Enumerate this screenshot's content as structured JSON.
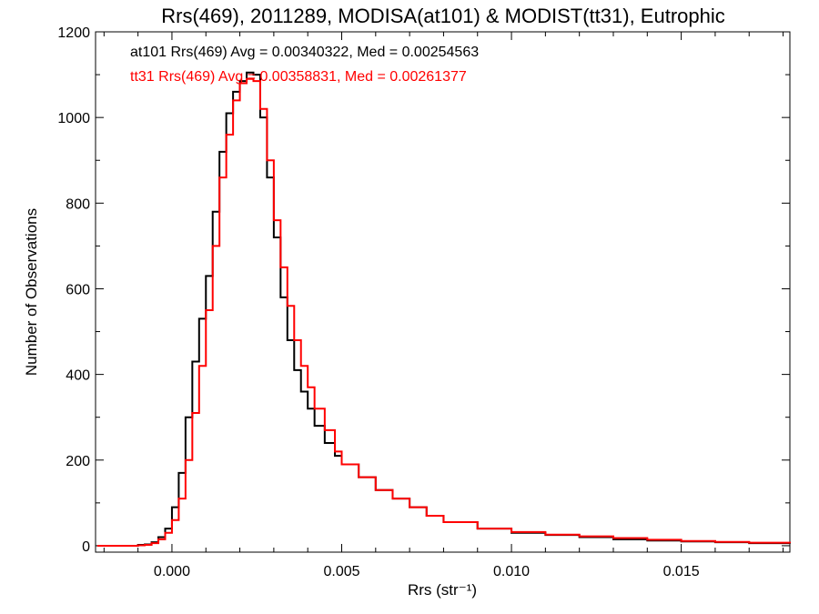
{
  "chart_data": {
    "type": "line",
    "title": "Rrs(469), 2011289, MODISA(at101) & MODIST(tt31), Eutrophic",
    "xlabel": "Rrs (str⁻¹)",
    "ylabel": "Number of Observations",
    "xlim": [
      -0.00225,
      0.0182
    ],
    "ylim": [
      -15,
      1200
    ],
    "xticks": [
      {
        "value": 0.0,
        "label": "0.000"
      },
      {
        "value": 0.005,
        "label": "0.005"
      },
      {
        "value": 0.01,
        "label": "0.010"
      },
      {
        "value": 0.015,
        "label": "0.015"
      }
    ],
    "yticks": [
      {
        "value": 0,
        "label": "0"
      },
      {
        "value": 200,
        "label": "200"
      },
      {
        "value": 400,
        "label": "400"
      },
      {
        "value": 600,
        "label": "600"
      },
      {
        "value": 800,
        "label": "800"
      },
      {
        "value": 1000,
        "label": "1000"
      },
      {
        "value": 1200,
        "label": "1200"
      }
    ],
    "grid": false,
    "legend_position": "top-left",
    "series": [
      {
        "name": "at101 Rrs(469) Avg = 0.00340322, Med = 0.00254563",
        "color": "#000000",
        "x": [
          -0.0022,
          -0.002,
          -0.0018,
          -0.0016,
          -0.0014,
          -0.0012,
          -0.001,
          -0.0008,
          -0.0006,
          -0.0004,
          -0.0002,
          0.0,
          0.0002,
          0.0004,
          0.0006,
          0.0008,
          0.001,
          0.0012,
          0.0014,
          0.0016,
          0.0018,
          0.002,
          0.0022,
          0.0024,
          0.0026,
          0.0028,
          0.003,
          0.0032,
          0.0034,
          0.0036,
          0.0038,
          0.004,
          0.0042,
          0.0045,
          0.0048,
          0.005,
          0.0055,
          0.006,
          0.0065,
          0.007,
          0.0075,
          0.008,
          0.009,
          0.01,
          0.011,
          0.012,
          0.013,
          0.014,
          0.015,
          0.016,
          0.017,
          0.0182
        ],
        "y": [
          0,
          0,
          0,
          0,
          0,
          0,
          2,
          3,
          8,
          20,
          40,
          90,
          170,
          300,
          430,
          530,
          630,
          780,
          920,
          1010,
          1060,
          1085,
          1105,
          1100,
          1000,
          860,
          720,
          580,
          480,
          410,
          360,
          320,
          280,
          240,
          210,
          190,
          160,
          130,
          110,
          90,
          70,
          55,
          40,
          30,
          25,
          20,
          15,
          12,
          10,
          8,
          6,
          5
        ]
      },
      {
        "name": "tt31 Rrs(469) Avg = 0.00358831, Med = 0.00261377",
        "color": "#ff0000",
        "x": [
          -0.0022,
          -0.002,
          -0.0018,
          -0.0016,
          -0.0014,
          -0.0012,
          -0.001,
          -0.0008,
          -0.0006,
          -0.0004,
          -0.0002,
          0.0,
          0.0002,
          0.0004,
          0.0006,
          0.0008,
          0.001,
          0.0012,
          0.0014,
          0.0016,
          0.0018,
          0.002,
          0.0022,
          0.0024,
          0.0026,
          0.0028,
          0.003,
          0.0032,
          0.0034,
          0.0036,
          0.0038,
          0.004,
          0.0042,
          0.0045,
          0.0048,
          0.005,
          0.0055,
          0.006,
          0.0065,
          0.007,
          0.0075,
          0.008,
          0.009,
          0.01,
          0.011,
          0.012,
          0.013,
          0.014,
          0.015,
          0.016,
          0.017,
          0.0182
        ],
        "y": [
          0,
          0,
          0,
          0,
          0,
          0,
          1,
          2,
          6,
          15,
          30,
          60,
          110,
          200,
          310,
          420,
          550,
          700,
          860,
          960,
          1040,
          1080,
          1090,
          1085,
          1020,
          900,
          760,
          650,
          560,
          480,
          420,
          370,
          320,
          270,
          220,
          190,
          160,
          130,
          110,
          90,
          70,
          55,
          40,
          32,
          26,
          22,
          18,
          14,
          11,
          9,
          7,
          6
        ]
      }
    ]
  }
}
